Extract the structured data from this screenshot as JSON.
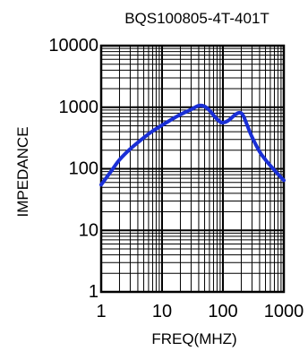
{
  "chart_data": {
    "type": "line",
    "title": "BQS100805-4T-401T",
    "xlabel": "FREQ(MHZ)",
    "ylabel": "IMPEDANCE",
    "x_scale": "log",
    "y_scale": "log",
    "xlim": [
      1,
      1000
    ],
    "ylim": [
      1,
      10000
    ],
    "x_ticks": [
      1,
      10,
      100,
      1000
    ],
    "x_tick_labels": [
      "1",
      "10",
      "100",
      "1000"
    ],
    "y_ticks": [
      1,
      10,
      100,
      1000,
      10000
    ],
    "y_tick_labels": [
      "1",
      "10",
      "100",
      "1000",
      "10000"
    ],
    "grid": true,
    "legend": "none",
    "series": [
      {
        "color": "#1a2fd6",
        "x": [
          1,
          1.5,
          2,
          3,
          5,
          7,
          10,
          15,
          20,
          30,
          40,
          50,
          60,
          70,
          80,
          90,
          100,
          120,
          140,
          160,
          180,
          200,
          220,
          250,
          300,
          400,
          500,
          700,
          1000
        ],
        "y": [
          55,
          95,
          140,
          210,
          320,
          410,
          510,
          650,
          760,
          920,
          1060,
          1030,
          890,
          740,
          640,
          580,
          560,
          600,
          680,
          760,
          810,
          800,
          700,
          510,
          330,
          190,
          140,
          95,
          65
        ]
      }
    ]
  }
}
